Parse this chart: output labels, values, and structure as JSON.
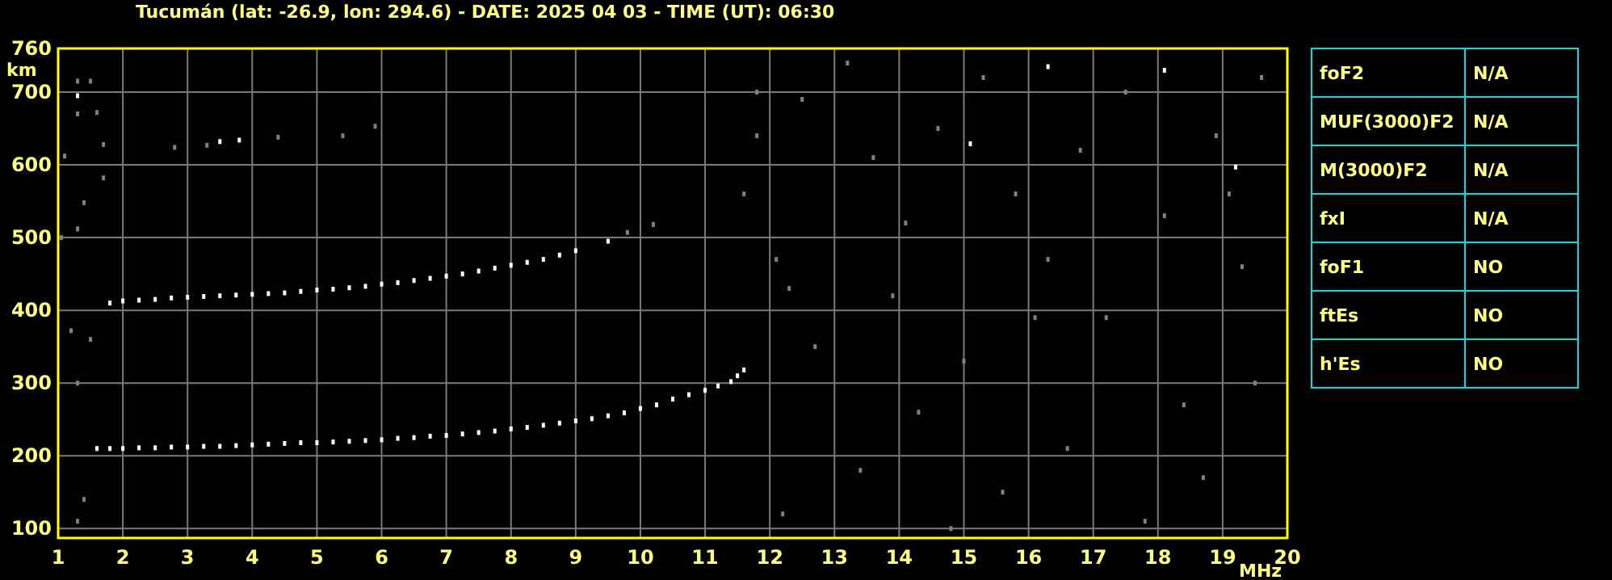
{
  "chart_data": [
    {
      "type": "scatter",
      "title": "Tucumán (lat: -26.9, lon: 294.6) - DATE: 2025 04 03 - TIME (UT): 06:30",
      "xlabel": "MHz",
      "ylabel": "km",
      "xlim": [
        1,
        20
      ],
      "ylim": [
        87,
        760
      ],
      "xticks": [
        1,
        2,
        3,
        4,
        5,
        6,
        7,
        8,
        9,
        10,
        11,
        12,
        13,
        14,
        15,
        16,
        17,
        18,
        19,
        20
      ],
      "yticks": [
        100,
        200,
        300,
        400,
        500,
        600,
        700,
        760
      ],
      "grid": true,
      "marker": "square",
      "series": [
        {
          "color": "#ffffff",
          "x": [
            1.6,
            1.8,
            2,
            2.25,
            2.5,
            2.75,
            3,
            3.25,
            3.5,
            3.75,
            4,
            4.25,
            4.5,
            4.75,
            5,
            5.25,
            5.5,
            5.75,
            6,
            6.25,
            6.5,
            6.75,
            7,
            7.25,
            7.5,
            7.75,
            8,
            8.25,
            8.5,
            8.75,
            9,
            9.25,
            9.5,
            9.75,
            10,
            10.25,
            10.5,
            10.75,
            11,
            11.2,
            11.4,
            11.5,
            11.6,
            1.8,
            2,
            2.25,
            2.5,
            2.75,
            3,
            3.25,
            3.5,
            3.75,
            4,
            4.25,
            4.5,
            4.75,
            5,
            5.25,
            5.5,
            5.75,
            6,
            6.25,
            6.5,
            6.75,
            7,
            7.25,
            7.5,
            7.75,
            8,
            8.25,
            8.5,
            8.75,
            9,
            9.5,
            3.5,
            3.8,
            15.1,
            16.3,
            18.1,
            19.2,
            1.3
          ],
          "values": [
            210,
            210,
            210,
            211,
            211,
            212,
            212,
            213,
            213,
            214,
            215,
            216,
            217,
            218,
            218,
            219,
            220,
            221,
            222,
            224,
            225,
            227,
            228,
            230,
            232,
            234,
            237,
            239,
            242,
            245,
            248,
            251,
            255,
            259,
            265,
            270,
            278,
            284,
            290,
            296,
            302,
            310,
            318,
            410,
            413,
            414,
            415,
            417,
            418,
            419,
            420,
            421,
            422,
            423,
            424,
            426,
            428,
            429,
            431,
            433,
            436,
            438,
            441,
            444,
            447,
            450,
            454,
            458,
            462,
            466,
            470,
            476,
            482,
            495,
            632,
            634,
            629,
            735,
            730,
            597,
            695
          ]
        },
        {
          "color": "#808080",
          "x": [
            1.3,
            1.5,
            1.3,
            1.6,
            1.7,
            1.1,
            1.4,
            1.7,
            1.3,
            1.05,
            1.2,
            1.5,
            1.3,
            1.4,
            1.3,
            11.8,
            11.8,
            11.6,
            12.1,
            12.3,
            12.5,
            13.2,
            13.6,
            14.1,
            14.6,
            15.0,
            15.3,
            15.8,
            16.3,
            16.8,
            17.2,
            17.5,
            18.1,
            18.4,
            18.9,
            19.3,
            19.6,
            12.7,
            13.4,
            14.3,
            15.6,
            16.1,
            17.8,
            18.7,
            19.5,
            13.9,
            16.6,
            19.1,
            12.2,
            14.8,
            2.8,
            3.3,
            4.4,
            5.4,
            5.9,
            9.8,
            10.2
          ],
          "values": [
            715,
            715,
            670,
            672,
            628,
            612,
            548,
            582,
            512,
            500,
            372,
            360,
            300,
            140,
            110,
            700,
            640,
            560,
            470,
            430,
            690,
            740,
            610,
            520,
            650,
            330,
            720,
            560,
            470,
            620,
            390,
            700,
            530,
            270,
            640,
            460,
            720,
            350,
            180,
            260,
            150,
            390,
            110,
            170,
            300,
            420,
            210,
            560,
            120,
            100,
            624,
            627,
            638,
            640,
            653,
            507,
            518
          ]
        }
      ]
    },
    {
      "type": "other",
      "categories": [
        "foF2",
        "MUF(3000)F2",
        "M(3000)F2",
        "fxI",
        "foF1",
        "ftEs",
        "h'Es"
      ],
      "value_labels": [
        "N/A",
        "N/A",
        "N/A",
        "N/A",
        "NO",
        "NO",
        "NO"
      ]
    }
  ]
}
